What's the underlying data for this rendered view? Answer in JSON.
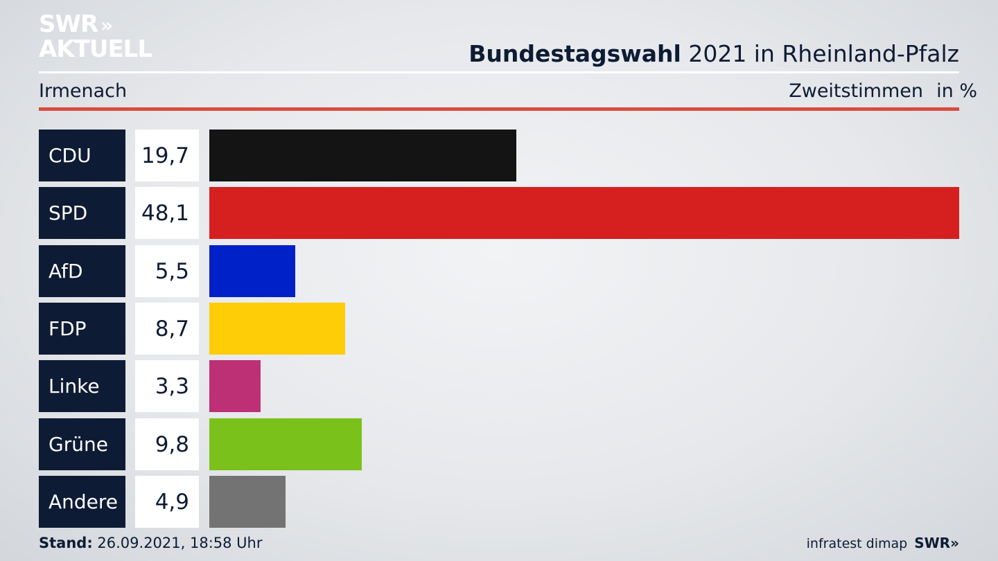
{
  "logo": {
    "line1": "SWR",
    "chevrons": "»",
    "line2": "AKTUELL"
  },
  "header": {
    "title_bold": "Bundestagswahl",
    "title_rest": " 2021 in Rheinland-Pfalz",
    "place": "Irmenach",
    "metric": "Zweitstimmen",
    "unit": "in %"
  },
  "chart_data": {
    "type": "bar",
    "orientation": "horizontal",
    "categories": [
      "CDU",
      "SPD",
      "AfD",
      "FDP",
      "Linke",
      "Grüne",
      "Andere"
    ],
    "values": [
      19.7,
      48.1,
      5.5,
      8.7,
      3.3,
      9.8,
      4.9
    ],
    "value_labels": [
      "19,7",
      "48,1",
      "5,5",
      "8,7",
      "3,3",
      "9,8",
      "4,9"
    ],
    "colors": [
      "#141414",
      "#d62020",
      "#0021c8",
      "#ffcc08",
      "#be3075",
      "#7ac11c",
      "#737373"
    ],
    "xlim": [
      0,
      48.1
    ],
    "grid": false,
    "title": "Bundestagswahl 2021 in Rheinland-Pfalz",
    "xlabel": "Zweitstimmen in %"
  },
  "footer": {
    "stand_label": "Stand:",
    "stand_value": " 26.09.2021, 18:58 Uhr",
    "source": "infratest dimap",
    "brand": "SWR",
    "brand_chevrons": "»"
  }
}
